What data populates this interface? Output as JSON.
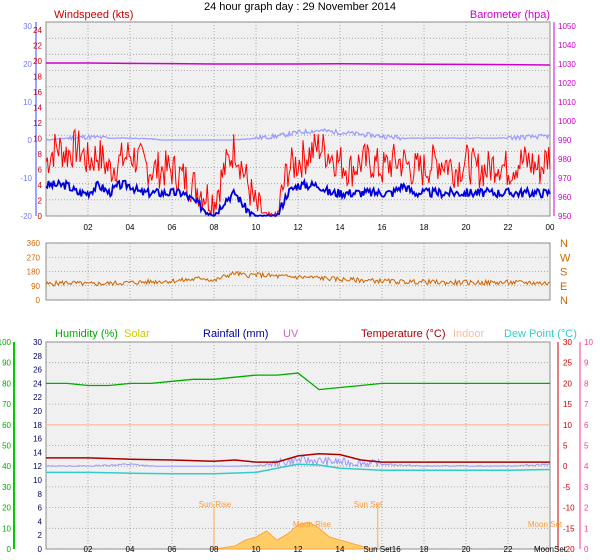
{
  "title": "24 hour graph day : 29 November 2014",
  "x_ticks": [
    "02",
    "04",
    "06",
    "08",
    "10",
    "12",
    "14",
    "16",
    "18",
    "20",
    "22",
    "00"
  ],
  "x_ticks_bottom": [
    "02",
    "04",
    "06",
    "08",
    "10",
    "12",
    "14",
    "Sun Set16",
    "18",
    "20",
    "22",
    "MoonSet"
  ],
  "colors": {
    "windspeed": "#ff0000",
    "windavg": "#0000dd",
    "temp_light": "#9999ff",
    "barometer": "#cc00cc",
    "winddir": "#cc6600",
    "humidity": "#00aa00",
    "solar": "#cccc00",
    "rainfall": "#000099",
    "uv": "#cc66cc",
    "temperature": "#aa0000",
    "indoor": "#ffbb99",
    "dewpoint": "#33cccc",
    "uv_axis": "#ff3399",
    "sun": "#ff9933",
    "bg": "#f0f0f0"
  },
  "chart_data": [
    {
      "type": "line",
      "title": "",
      "legend_left": "Windspeed (kts)",
      "legend_right": "Barometer (hpa)",
      "y_left_ticks": [
        "24",
        "22",
        "20",
        "18",
        "16",
        "14",
        "12",
        "10",
        "8",
        "6",
        "4",
        "2",
        "0"
      ],
      "y_left2_ticks": [
        "30",
        "20",
        "10",
        "0",
        "-10",
        "-20"
      ],
      "y_right_ticks": [
        "1050",
        "1040",
        "1030",
        "1020",
        "1010",
        "1000",
        "990",
        "980",
        "970",
        "960",
        "950"
      ],
      "y_left_range": [
        0,
        24
      ],
      "y_right_range": [
        950,
        1050
      ],
      "x_range_hours": [
        0,
        24
      ],
      "series": [
        {
          "key": "windspeed_gust",
          "units": "kts",
          "hours": [
            0,
            0.5,
            1,
            1.5,
            2,
            2.5,
            3,
            3.5,
            4,
            4.5,
            5,
            5.5,
            6,
            6.5,
            7,
            7.5,
            8,
            8.5,
            9,
            9.5,
            10,
            10.5,
            11,
            11.5,
            12,
            12.5,
            13,
            13.5,
            14,
            14.5,
            15,
            15.5,
            16,
            16.5,
            17,
            17.5,
            18,
            18.5,
            19,
            19.5,
            20,
            20.5,
            21,
            21.5,
            22,
            22.5,
            23,
            23.5,
            24
          ],
          "values": [
            7,
            9,
            8,
            9,
            7,
            8,
            6,
            7,
            8,
            7,
            6,
            6,
            6,
            5,
            4,
            3,
            2,
            6,
            9,
            5,
            1,
            0,
            0,
            6,
            7,
            8,
            9,
            8,
            7,
            6,
            7,
            7,
            6,
            7,
            7,
            6,
            6,
            7,
            7,
            6,
            7,
            6,
            6,
            7,
            6,
            7,
            7,
            6,
            8
          ]
        },
        {
          "key": "windspeed_avg",
          "units": "kts",
          "hours": [
            0,
            0.5,
            1,
            1.5,
            2,
            2.5,
            3,
            3.5,
            4,
            4.5,
            5,
            5.5,
            6,
            6.5,
            7,
            7.5,
            8,
            8.5,
            9,
            9.5,
            10,
            10.5,
            11,
            11.5,
            12,
            12.5,
            13,
            13.5,
            14,
            14.5,
            15,
            15.5,
            16,
            16.5,
            17,
            17.5,
            18,
            18.5,
            19,
            19.5,
            20,
            20.5,
            21,
            21.5,
            22,
            22.5,
            23,
            23.5,
            24
          ],
          "values": [
            4,
            4,
            4,
            3,
            3,
            4,
            3,
            4,
            4,
            3,
            3,
            3,
            3,
            3,
            2,
            1,
            0,
            2,
            3,
            1,
            0,
            0,
            0,
            3,
            4,
            4,
            4,
            3,
            3,
            3,
            3,
            3,
            3,
            3,
            4,
            3,
            3,
            3,
            3,
            3,
            3,
            3,
            3,
            3,
            3,
            3,
            3,
            3,
            3
          ]
        },
        {
          "key": "barometer",
          "units": "hpa",
          "hours": [
            0,
            2,
            4,
            6,
            8,
            10,
            12,
            14,
            16,
            18,
            20,
            22,
            24
          ],
          "values": [
            1030.5,
            1030.5,
            1030.3,
            1030.2,
            1030.0,
            1030.0,
            1030.0,
            1030.1,
            1030.0,
            1029.9,
            1029.8,
            1029.7,
            1029.5
          ]
        },
        {
          "key": "temperature_light",
          "units": "°C",
          "hours": [
            0,
            1,
            2,
            3,
            4,
            5,
            6,
            7,
            8,
            9,
            10,
            11,
            12,
            13,
            14,
            15,
            16,
            17,
            18,
            19,
            20,
            21,
            22,
            23,
            24
          ],
          "values": [
            0,
            0.5,
            0.8,
            0.5,
            0.5,
            0.3,
            -0.3,
            -0.5,
            -0.3,
            0,
            0.5,
            1,
            2,
            2.5,
            2,
            1.5,
            1,
            0.5,
            0.5,
            0.5,
            0.5,
            0.5,
            0.5,
            0.8,
            1
          ]
        }
      ]
    },
    {
      "type": "line",
      "title": "",
      "y_left_ticks": [
        "360",
        "270",
        "180",
        "90",
        "0"
      ],
      "y_right_labels": [
        "N",
        "W",
        "S",
        "E",
        "N"
      ],
      "y_range": [
        0,
        360
      ],
      "x_range_hours": [
        0,
        24
      ],
      "series": [
        {
          "key": "wind_direction",
          "units": "degrees",
          "hours": [
            0,
            1,
            2,
            3,
            4,
            5,
            6,
            7,
            7.5,
            8,
            8.5,
            9,
            9.5,
            10,
            11,
            12,
            13,
            14,
            15,
            16,
            17,
            18,
            19,
            20,
            21,
            22,
            23,
            24
          ],
          "values": [
            100,
            110,
            100,
            105,
            110,
            115,
            120,
            130,
            140,
            120,
            150,
            170,
            155,
            160,
            150,
            145,
            140,
            130,
            125,
            120,
            115,
            115,
            110,
            110,
            110,
            110,
            110,
            105
          ]
        }
      ]
    },
    {
      "type": "line",
      "title": "",
      "legend": [
        "Humidity (%)",
        "Solar",
        "Rainfall (mm)",
        "UV",
        "Temperature (°C)",
        "Indoor",
        "Dew Point (°C)"
      ],
      "y_hum_ticks": [
        "100",
        "90",
        "80",
        "70",
        "60",
        "50",
        "40",
        "30",
        "20",
        "10",
        "0"
      ],
      "y_temp_left_ticks": [
        "30",
        "28",
        "26",
        "24",
        "22",
        "20",
        "18",
        "16",
        "14",
        "12",
        "10",
        "8",
        "6",
        "4",
        "2",
        "0"
      ],
      "y_temp_right_ticks": [
        "30",
        "25",
        "20",
        "15",
        "10",
        "5",
        "0",
        "-5",
        "-10",
        "-15",
        "-20"
      ],
      "y_uv_ticks": [
        "10",
        "9",
        "8",
        "7",
        "6",
        "5",
        "4",
        "3",
        "2",
        "1",
        "0"
      ],
      "annotations": [
        "Sun Rise",
        "Sun Set",
        "Moon Rise",
        "Moon Set"
      ],
      "x_range_hours": [
        0,
        24
      ],
      "series": [
        {
          "key": "humidity",
          "units": "%",
          "hours": [
            0,
            1,
            2,
            3,
            4,
            5,
            6,
            7,
            8,
            9,
            10,
            11,
            12,
            12.5,
            13,
            14,
            15,
            16,
            17,
            18,
            19,
            20,
            21,
            22,
            23,
            24
          ],
          "values": [
            80,
            80,
            79,
            79,
            80,
            80,
            81,
            82,
            82,
            83,
            84,
            84,
            85,
            81,
            77,
            78,
            79,
            80,
            80,
            80,
            80,
            80,
            80,
            80,
            80,
            80
          ]
        },
        {
          "key": "temperature",
          "units": "°C",
          "hours": [
            0,
            2,
            4,
            6,
            8,
            9,
            10,
            11,
            12,
            13,
            14,
            15,
            16,
            17,
            18,
            19,
            20,
            21,
            22,
            23,
            24
          ],
          "values": [
            2,
            2,
            1.7,
            1.5,
            1.2,
            1.5,
            1,
            1,
            2.5,
            3,
            2.8,
            1.5,
            1,
            1,
            1,
            1,
            1,
            1,
            1,
            1,
            1
          ]
        },
        {
          "key": "indoor",
          "units": "°C",
          "hours": [
            0,
            6,
            12,
            18,
            24
          ],
          "values": [
            10,
            10,
            10,
            10,
            10
          ]
        },
        {
          "key": "dew_point",
          "units": "°C",
          "hours": [
            0,
            2,
            4,
            6,
            8,
            10,
            12,
            13,
            14,
            16,
            18,
            20,
            22,
            24
          ],
          "values": [
            -1.5,
            -1.5,
            -1.7,
            -1.8,
            -1.8,
            -1.5,
            0.5,
            0.3,
            -0.5,
            -1,
            -1,
            -1,
            -1,
            -0.8
          ]
        },
        {
          "key": "temperature_light_band",
          "units": "°C",
          "hours": [
            0,
            2,
            4,
            6,
            8,
            10,
            12,
            14,
            16,
            18,
            20,
            22,
            24
          ],
          "values": [
            0,
            0,
            0.5,
            -0.5,
            0,
            0,
            1.5,
            1,
            0.5,
            0,
            0,
            0,
            0.5
          ]
        },
        {
          "key": "solar",
          "units": "W/m2",
          "hours": [
            8,
            9,
            9.5,
            10,
            10.5,
            11,
            11.5,
            12,
            12.5,
            13,
            13.5,
            14,
            14.5,
            15,
            15.5
          ],
          "values": [
            0,
            5,
            15,
            20,
            30,
            15,
            25,
            40,
            45,
            35,
            20,
            15,
            10,
            5,
            0
          ]
        }
      ]
    }
  ]
}
